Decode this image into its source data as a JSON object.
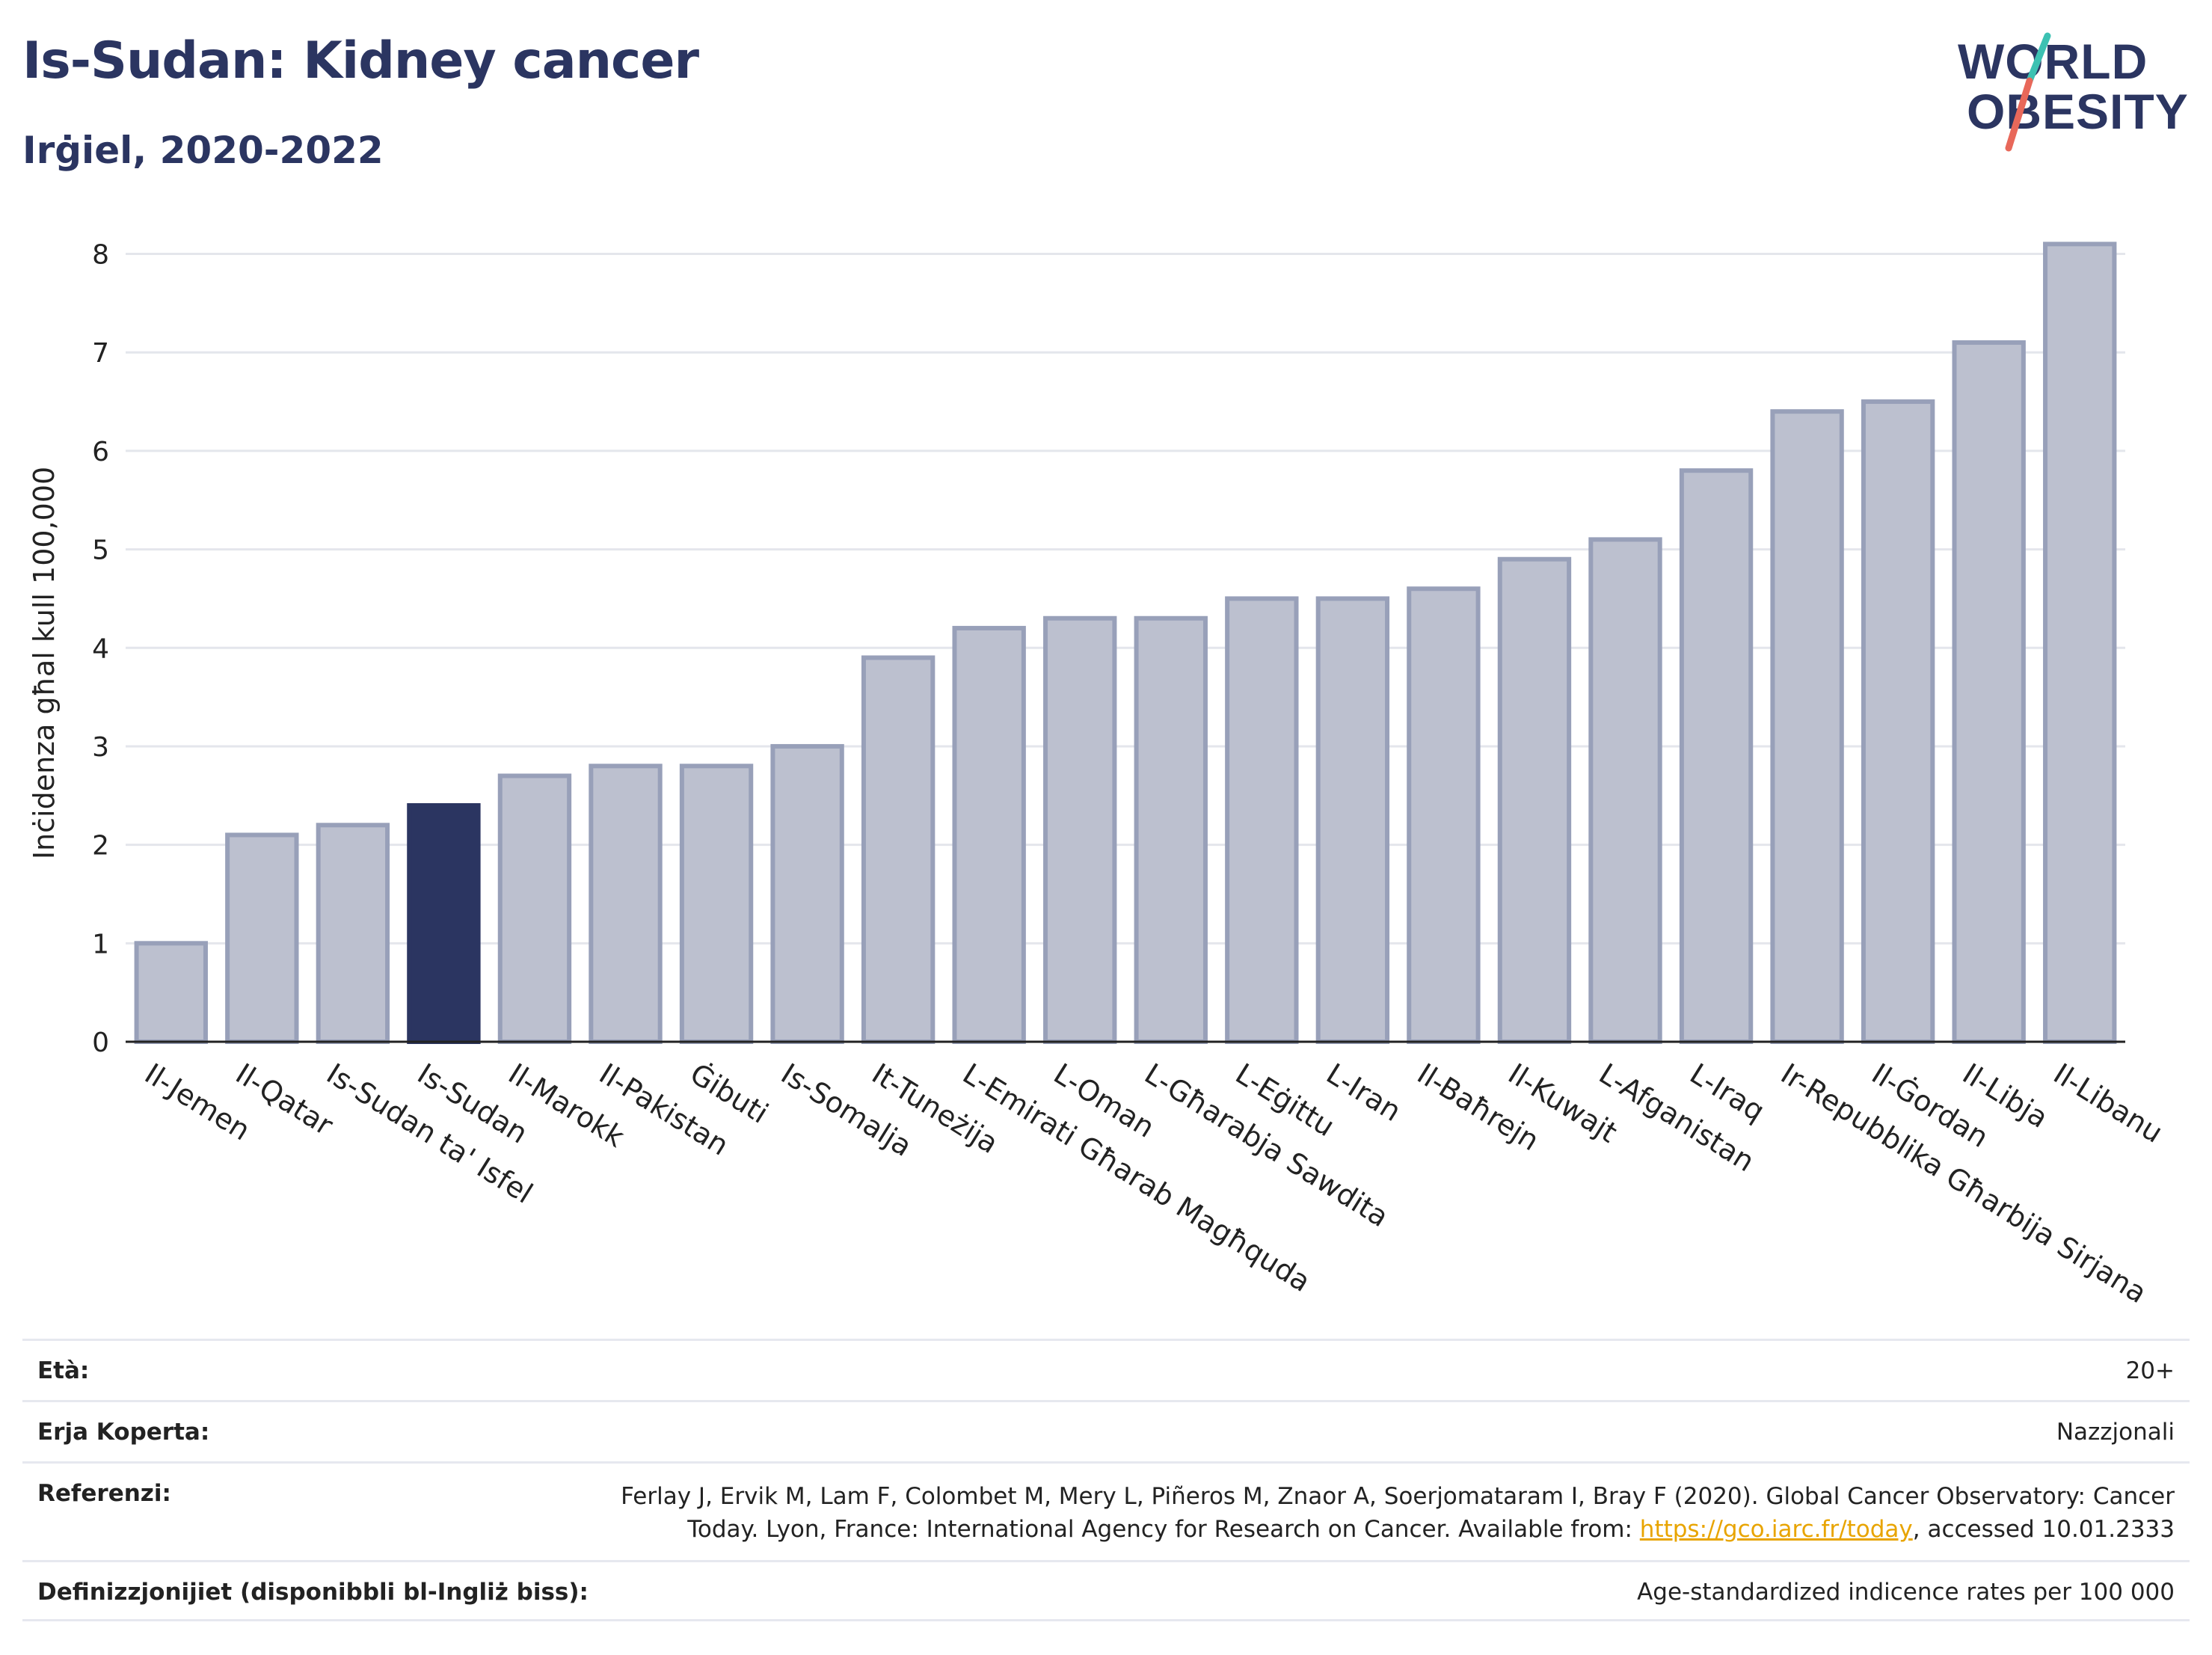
{
  "title": "Is-Sudan: Kidney cancer",
  "subtitle": "Irġiel, 2020-2022",
  "logo": {
    "line1": "WORLD",
    "line2": "OBESITY"
  },
  "colors": {
    "highlight": "#2b3561",
    "bar_fill": "#bcc0cf",
    "bar_stroke": "#98a0b9",
    "text_dark": "#2b3561",
    "grid": "#e4e6ec",
    "logo_teal": "#3cc1b2",
    "logo_red": "#e8685a"
  },
  "chart_data": {
    "type": "bar",
    "ylabel": "Inċidenza għal kull 100,000",
    "ylim": [
      0,
      8.3
    ],
    "yticks": [
      0,
      1,
      2,
      3,
      4,
      5,
      6,
      7,
      8
    ],
    "grid": true,
    "highlight_category": "Is-Sudan",
    "categories": [
      "Il-Jemen",
      "Il-Qatar",
      "Is-Sudan ta' Isfel",
      "Is-Sudan",
      "Il-Marokk",
      "Il-Pakistan",
      "Ġibuti",
      "Is-Somalja",
      "It-Tuneżija",
      "L-Emirati Għarab Magħquda",
      "L-Oman",
      "L-Għarabja Sawdita",
      "L-Eġittu",
      "L-Iran",
      "Il-Baħrejn",
      "Il-Kuwajt",
      "L-Afganistan",
      "L-Iraq",
      "Ir-Repubblika Għarbija Sirjana",
      "Il-Ġordan",
      "Il-Libja",
      "Il-Libanu"
    ],
    "values": [
      1.0,
      2.1,
      2.2,
      2.4,
      2.7,
      2.8,
      2.8,
      3.0,
      3.9,
      4.2,
      4.3,
      4.3,
      4.5,
      4.5,
      4.6,
      4.9,
      5.1,
      5.8,
      6.4,
      6.5,
      7.1,
      8.1
    ]
  },
  "footer": {
    "rows": [
      {
        "label": "Età:",
        "value": "20+"
      },
      {
        "label": "Erja Koperta:",
        "value": "Nazzjonali"
      },
      {
        "label": "Referenzi:",
        "value_line1": "Ferlay J, Ervik M, Lam F, Colombet M, Mery L, Piñeros M, Znaor A, Soerjomataram I, Bray F (2020). Global Cancer Observatory: Cancer",
        "value_line2_pre": "Today. Lyon, France: International Agency for Research on Cancer. Available from: ",
        "link": "https://gco.iarc.fr/today",
        "value_line2_post": ", accessed 10.01.2333"
      },
      {
        "label": "Definizzjonijiet (disponibbli bl-Ingliż biss):",
        "value": "Age-standardized indicence rates per 100 000"
      }
    ]
  }
}
